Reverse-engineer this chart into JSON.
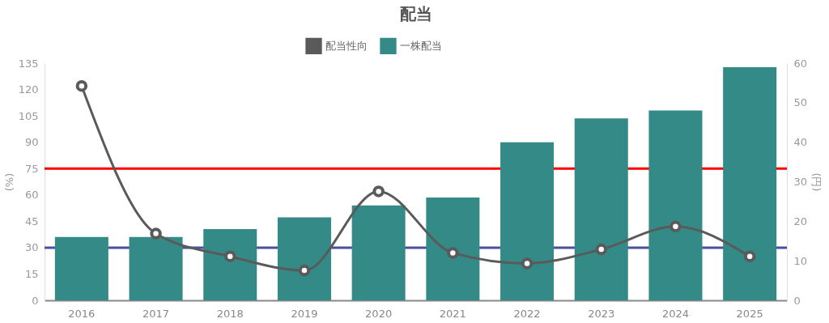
{
  "chart_data": {
    "type": "bar",
    "title": "配当",
    "categories": [
      "2016",
      "2017",
      "2018",
      "2019",
      "2020",
      "2021",
      "2022",
      "2023",
      "2024",
      "2025"
    ],
    "series": [
      {
        "name": "配当性向",
        "type": "line",
        "color": "#5a5a5a",
        "values": [
          122,
          38,
          25,
          17,
          62,
          27,
          21,
          29,
          42,
          25
        ]
      },
      {
        "name": "一株配当",
        "axis": "y2",
        "color": "#348a87",
        "values": [
          16,
          16,
          18,
          21,
          24,
          26,
          40,
          46,
          48,
          59
        ]
      }
    ],
    "ylabel": "(%)",
    "y2label": "(円)",
    "ylim": [
      0,
      135
    ],
    "yticks": [
      0,
      15,
      30,
      45,
      60,
      75,
      90,
      105,
      120,
      135
    ],
    "y2lim": [
      0,
      60
    ],
    "y2ticks": [
      0,
      10,
      20,
      30,
      40,
      50,
      60
    ],
    "ref_lines": [
      {
        "axis": "y",
        "value": 75,
        "color": "#ff0000",
        "line_style": "solid"
      },
      {
        "axis": "y",
        "value": 30,
        "color": "#4b4f9c",
        "line_style": "solid"
      }
    ],
    "legend": "top",
    "grid": false,
    "marker": "circle",
    "line_style": "solid"
  }
}
